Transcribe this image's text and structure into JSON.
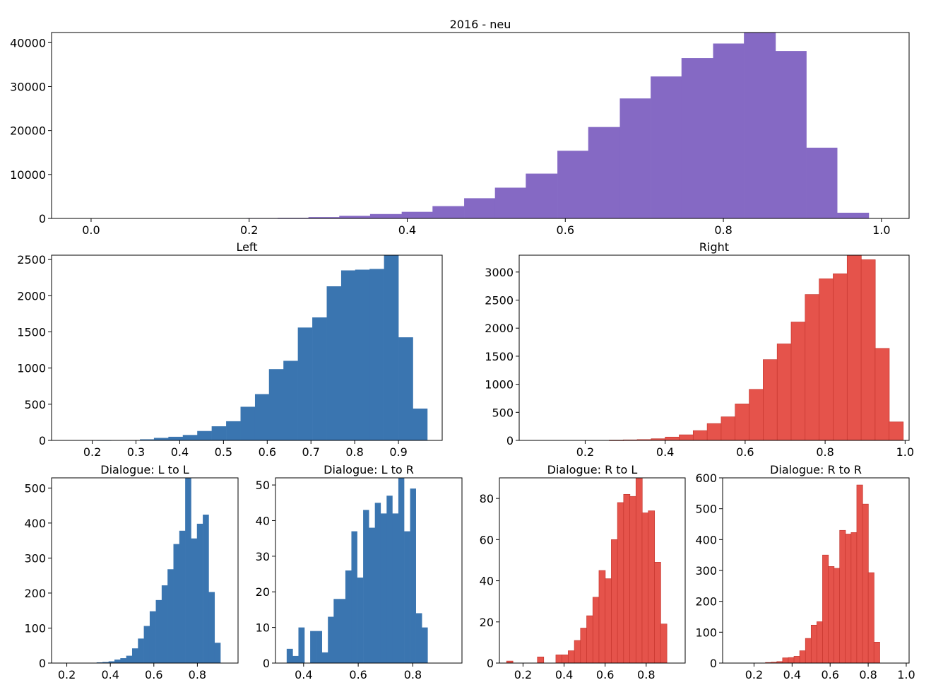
{
  "chart_data": [
    {
      "id": "top",
      "type": "bar",
      "title": "2016 - neu",
      "color": "#8569c4",
      "xlim": [
        -0.05,
        1.035
      ],
      "ylim": [
        0,
        42300
      ],
      "xticks": [
        0.0,
        0.2,
        0.4,
        0.6,
        0.8,
        1.0
      ],
      "xtick_labels": [
        "0.0",
        "0.2",
        "0.4",
        "0.6",
        "0.8",
        "1.0"
      ],
      "yticks": [
        0,
        10000,
        20000,
        30000,
        40000
      ],
      "ytick_labels": [
        "0",
        "10000",
        "20000",
        "30000",
        "40000"
      ],
      "bins": [
        [
          0.197,
          0.236,
          100
        ],
        [
          0.236,
          0.275,
          150
        ],
        [
          0.275,
          0.314,
          300
        ],
        [
          0.314,
          0.353,
          600
        ],
        [
          0.353,
          0.393,
          1000
        ],
        [
          0.393,
          0.432,
          1500
        ],
        [
          0.432,
          0.472,
          2800
        ],
        [
          0.472,
          0.511,
          4600
        ],
        [
          0.511,
          0.55,
          7000
        ],
        [
          0.55,
          0.59,
          10200
        ],
        [
          0.59,
          0.629,
          15400
        ],
        [
          0.629,
          0.669,
          20800
        ],
        [
          0.669,
          0.708,
          27300
        ],
        [
          0.708,
          0.747,
          32300
        ],
        [
          0.747,
          0.787,
          36500
        ],
        [
          0.787,
          0.826,
          39800
        ],
        [
          0.826,
          0.866,
          42300
        ],
        [
          0.866,
          0.905,
          38100
        ],
        [
          0.905,
          0.944,
          16100
        ],
        [
          0.944,
          0.984,
          1300
        ]
      ]
    },
    {
      "id": "left",
      "type": "bar",
      "title": "Left",
      "color": "#3a75b0",
      "xlim": [
        0.107,
        1.0
      ],
      "ylim": [
        0,
        2560
      ],
      "xticks": [
        0.2,
        0.3,
        0.4,
        0.5,
        0.6,
        0.7,
        0.8,
        0.9
      ],
      "xtick_labels": [
        "0.2",
        "0.3",
        "0.4",
        "0.5",
        "0.6",
        "0.7",
        "0.8",
        "0.9"
      ],
      "yticks": [
        0,
        500,
        1000,
        1500,
        2000,
        2500
      ],
      "ytick_labels": [
        "0",
        "500",
        "1000",
        "1500",
        "2000",
        "2500"
      ],
      "bins": [
        [
          0.21,
          0.243,
          2
        ],
        [
          0.243,
          0.276,
          3
        ],
        [
          0.276,
          0.309,
          5
        ],
        [
          0.309,
          0.341,
          15
        ],
        [
          0.341,
          0.374,
          35
        ],
        [
          0.374,
          0.407,
          50
        ],
        [
          0.407,
          0.44,
          75
        ],
        [
          0.44,
          0.473,
          130
        ],
        [
          0.473,
          0.506,
          195
        ],
        [
          0.506,
          0.539,
          265
        ],
        [
          0.539,
          0.572,
          465
        ],
        [
          0.572,
          0.604,
          640
        ],
        [
          0.604,
          0.637,
          985
        ],
        [
          0.637,
          0.67,
          1100
        ],
        [
          0.67,
          0.703,
          1560
        ],
        [
          0.703,
          0.736,
          1700
        ],
        [
          0.736,
          0.769,
          2130
        ],
        [
          0.769,
          0.801,
          2350
        ],
        [
          0.801,
          0.834,
          2360
        ],
        [
          0.834,
          0.867,
          2370
        ],
        [
          0.867,
          0.9,
          2560
        ],
        [
          0.9,
          0.933,
          1425
        ],
        [
          0.933,
          0.966,
          440
        ]
      ]
    },
    {
      "id": "right",
      "type": "bar",
      "title": "Right",
      "color": "#e5534b",
      "edge": "#c03028",
      "xlim": [
        0.035,
        1.01
      ],
      "ylim": [
        0,
        3300
      ],
      "xticks": [
        0.2,
        0.4,
        0.6,
        0.8,
        1.0
      ],
      "xtick_labels": [
        "0.2",
        "0.4",
        "0.6",
        "0.8",
        "1.0"
      ],
      "yticks": [
        0,
        500,
        1000,
        1500,
        2000,
        2500,
        3000
      ],
      "ytick_labels": [
        "0",
        "500",
        "1000",
        "1500",
        "2000",
        "2500",
        "3000"
      ],
      "bins": [
        [
          0.26,
          0.295,
          5
        ],
        [
          0.295,
          0.33,
          10
        ],
        [
          0.33,
          0.365,
          15
        ],
        [
          0.365,
          0.4,
          30
        ],
        [
          0.4,
          0.435,
          60
        ],
        [
          0.435,
          0.47,
          100
        ],
        [
          0.47,
          0.505,
          175
        ],
        [
          0.505,
          0.54,
          300
        ],
        [
          0.54,
          0.575,
          420
        ],
        [
          0.575,
          0.61,
          650
        ],
        [
          0.61,
          0.645,
          910
        ],
        [
          0.645,
          0.68,
          1440
        ],
        [
          0.68,
          0.715,
          1720
        ],
        [
          0.715,
          0.75,
          2110
        ],
        [
          0.75,
          0.785,
          2600
        ],
        [
          0.785,
          0.82,
          2880
        ],
        [
          0.82,
          0.855,
          2970
        ],
        [
          0.855,
          0.89,
          3300
        ],
        [
          0.89,
          0.925,
          3220
        ],
        [
          0.925,
          0.96,
          1640
        ],
        [
          0.96,
          0.995,
          330
        ]
      ]
    },
    {
      "id": "ll",
      "type": "bar",
      "title": "Dialogue: L to L",
      "color": "#3a75b0",
      "xlim": [
        0.13,
        0.987
      ],
      "ylim": [
        0,
        529
      ],
      "xticks": [
        0.2,
        0.4,
        0.6,
        0.8
      ],
      "xtick_labels": [
        "0.2",
        "0.4",
        "0.6",
        "0.8"
      ],
      "yticks": [
        0,
        100,
        200,
        300,
        400,
        500
      ],
      "ytick_labels": [
        "0",
        "100",
        "200",
        "300",
        "400",
        "500"
      ],
      "bins": [
        [
          0.31,
          0.337,
          1
        ],
        [
          0.337,
          0.364,
          2
        ],
        [
          0.364,
          0.392,
          3
        ],
        [
          0.392,
          0.419,
          5
        ],
        [
          0.419,
          0.446,
          10
        ],
        [
          0.446,
          0.473,
          14
        ],
        [
          0.473,
          0.5,
          21
        ],
        [
          0.5,
          0.527,
          42
        ],
        [
          0.527,
          0.554,
          70
        ],
        [
          0.554,
          0.581,
          106
        ],
        [
          0.581,
          0.609,
          148
        ],
        [
          0.609,
          0.636,
          180
        ],
        [
          0.636,
          0.663,
          222
        ],
        [
          0.663,
          0.69,
          268
        ],
        [
          0.69,
          0.717,
          340
        ],
        [
          0.717,
          0.744,
          378
        ],
        [
          0.744,
          0.771,
          529
        ],
        [
          0.771,
          0.798,
          356
        ],
        [
          0.798,
          0.825,
          398
        ],
        [
          0.825,
          0.852,
          424
        ],
        [
          0.852,
          0.879,
          203
        ],
        [
          0.879,
          0.906,
          58
        ]
      ]
    },
    {
      "id": "lr",
      "type": "bar",
      "title": "Dialogue: L to R",
      "color": "#3a75b0",
      "xlim": [
        0.297,
        0.98
      ],
      "ylim": [
        0,
        52
      ],
      "xticks": [
        0.4,
        0.6,
        0.8
      ],
      "xtick_labels": [
        "0.4",
        "0.6",
        "0.8"
      ],
      "yticks": [
        0,
        10,
        20,
        30,
        40,
        50
      ],
      "ytick_labels": [
        "0",
        "10",
        "20",
        "30",
        "40",
        "50"
      ],
      "bins": [
        [
          0.338,
          0.36,
          4
        ],
        [
          0.36,
          0.381,
          2
        ],
        [
          0.381,
          0.403,
          10
        ],
        [
          0.403,
          0.424,
          0
        ],
        [
          0.424,
          0.446,
          9
        ],
        [
          0.446,
          0.467,
          9
        ],
        [
          0.467,
          0.489,
          3
        ],
        [
          0.489,
          0.51,
          13
        ],
        [
          0.51,
          0.532,
          18
        ],
        [
          0.532,
          0.553,
          18
        ],
        [
          0.553,
          0.575,
          26
        ],
        [
          0.575,
          0.596,
          37
        ],
        [
          0.596,
          0.618,
          24
        ],
        [
          0.618,
          0.639,
          43
        ],
        [
          0.639,
          0.661,
          38
        ],
        [
          0.661,
          0.682,
          45
        ],
        [
          0.682,
          0.704,
          42
        ],
        [
          0.704,
          0.725,
          47
        ],
        [
          0.725,
          0.747,
          42
        ],
        [
          0.747,
          0.768,
          52
        ],
        [
          0.768,
          0.79,
          37
        ],
        [
          0.79,
          0.811,
          49
        ],
        [
          0.811,
          0.833,
          14
        ],
        [
          0.833,
          0.854,
          10
        ]
      ]
    },
    {
      "id": "rl",
      "type": "bar",
      "title": "Dialogue: R to L",
      "color": "#e5534b",
      "edge": "#c03028",
      "xlim": [
        0.085,
        0.99
      ],
      "ylim": [
        0,
        90
      ],
      "xticks": [
        0.2,
        0.4,
        0.6,
        0.8
      ],
      "xtick_labels": [
        "0.2",
        "0.4",
        "0.6",
        "0.8"
      ],
      "yticks": [
        0,
        20,
        40,
        60,
        80
      ],
      "ytick_labels": [
        "0",
        "20",
        "40",
        "60",
        "80"
      ],
      "bins": [
        [
          0.12,
          0.15,
          1
        ],
        [
          0.15,
          0.18,
          0
        ],
        [
          0.18,
          0.21,
          0
        ],
        [
          0.21,
          0.24,
          0
        ],
        [
          0.24,
          0.27,
          0
        ],
        [
          0.27,
          0.3,
          3
        ],
        [
          0.3,
          0.33,
          0
        ],
        [
          0.33,
          0.36,
          0
        ],
        [
          0.36,
          0.39,
          4
        ],
        [
          0.39,
          0.42,
          4
        ],
        [
          0.42,
          0.45,
          6
        ],
        [
          0.45,
          0.48,
          11
        ],
        [
          0.48,
          0.51,
          17
        ],
        [
          0.51,
          0.54,
          23
        ],
        [
          0.54,
          0.57,
          32
        ],
        [
          0.57,
          0.6,
          45
        ],
        [
          0.6,
          0.63,
          41
        ],
        [
          0.63,
          0.66,
          60
        ],
        [
          0.66,
          0.69,
          78
        ],
        [
          0.69,
          0.72,
          82
        ],
        [
          0.72,
          0.75,
          81
        ],
        [
          0.75,
          0.78,
          90
        ],
        [
          0.78,
          0.81,
          73
        ],
        [
          0.81,
          0.84,
          74
        ],
        [
          0.84,
          0.87,
          49
        ],
        [
          0.87,
          0.9,
          19
        ]
      ]
    },
    {
      "id": "rr",
      "type": "bar",
      "title": "Dialogue: R to R",
      "color": "#e5534b",
      "edge": "#c03028",
      "xlim": [
        0.035,
        1.015
      ],
      "ylim": [
        0,
        600
      ],
      "xticks": [
        0.2,
        0.4,
        0.6,
        0.8,
        1.0
      ],
      "xtick_labels": [
        "0.2",
        "0.4",
        "0.6",
        "0.8",
        "1.0"
      ],
      "yticks": [
        0,
        100,
        200,
        300,
        400,
        500,
        600
      ],
      "ytick_labels": [
        "0",
        "100",
        "200",
        "300",
        "400",
        "500",
        "600"
      ],
      "bins": [
        [
          0.26,
          0.29,
          2
        ],
        [
          0.29,
          0.32,
          3
        ],
        [
          0.32,
          0.35,
          5
        ],
        [
          0.35,
          0.38,
          17
        ],
        [
          0.38,
          0.41,
          18
        ],
        [
          0.41,
          0.44,
          22
        ],
        [
          0.44,
          0.47,
          40
        ],
        [
          0.47,
          0.5,
          80
        ],
        [
          0.5,
          0.53,
          123
        ],
        [
          0.53,
          0.56,
          134
        ],
        [
          0.56,
          0.59,
          350
        ],
        [
          0.59,
          0.62,
          313
        ],
        [
          0.62,
          0.65,
          307
        ],
        [
          0.65,
          0.68,
          430
        ],
        [
          0.68,
          0.71,
          418
        ],
        [
          0.71,
          0.74,
          423
        ],
        [
          0.74,
          0.77,
          577
        ],
        [
          0.77,
          0.8,
          515
        ],
        [
          0.8,
          0.83,
          293
        ],
        [
          0.83,
          0.86,
          68
        ]
      ]
    }
  ]
}
